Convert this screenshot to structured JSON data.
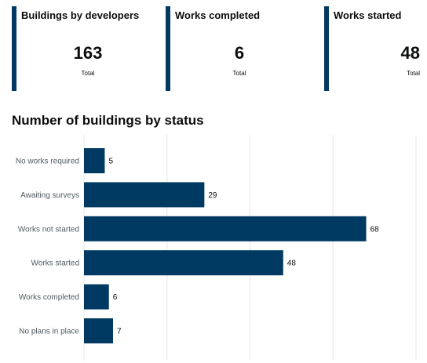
{
  "kpis": [
    {
      "title": "Buildings by developers",
      "value": "163",
      "sub": "Total"
    },
    {
      "title": "Works completed",
      "value": "6",
      "sub": "Total"
    },
    {
      "title": "Works started",
      "value": "48",
      "sub": "Total"
    }
  ],
  "colors": {
    "accent": "#003a63",
    "grid": "#e6e6e6"
  },
  "chart_data": {
    "type": "bar",
    "orientation": "horizontal",
    "title": "Number of buildings by status",
    "categories": [
      "No works required",
      "Awaiting surveys",
      "Works not started",
      "Works started",
      "Works completed",
      "No plans in place"
    ],
    "values": [
      5,
      29,
      68,
      48,
      6,
      7
    ],
    "xlim": [
      0,
      80
    ],
    "grid": true,
    "data_labels": true,
    "xlabel": "",
    "ylabel": ""
  }
}
